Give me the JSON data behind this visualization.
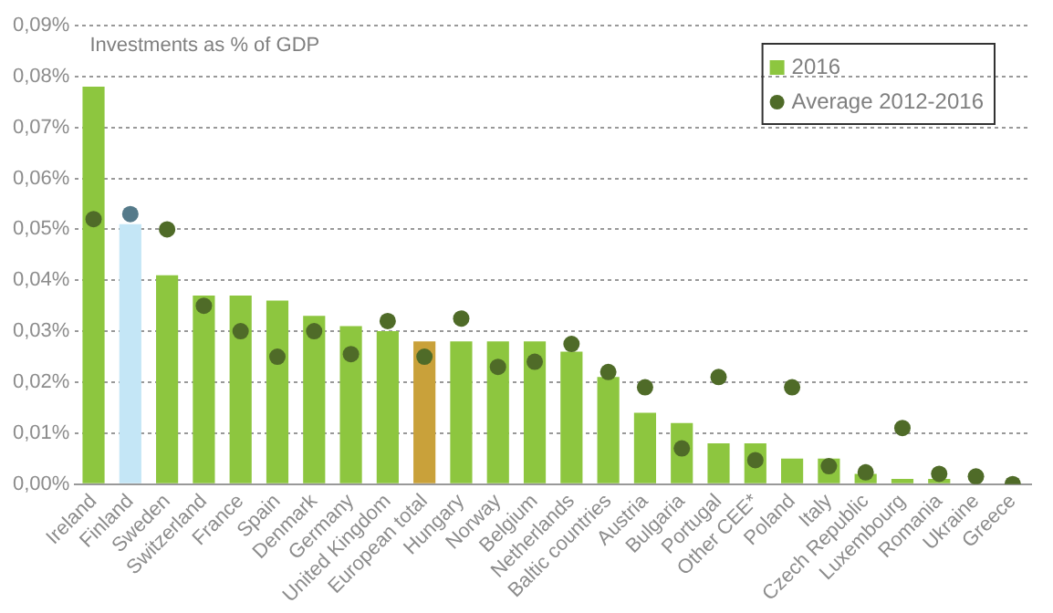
{
  "chart_data": {
    "type": "bar",
    "title": "Investments as % of GDP",
    "categories": [
      "Ireland",
      "Finland",
      "Sweden",
      "Switzerland",
      "France",
      "Spain",
      "Denmark",
      "Germany",
      "United Kingdom",
      "European total",
      "Hungary",
      "Norway",
      "Belgium",
      "Netherlands",
      "Baltic countries",
      "Austria",
      "Bulgaria",
      "Portugal",
      "Other CEE*",
      "Poland",
      "Italy",
      "Czech Republic",
      "Luxembourg",
      "Romania",
      "Ukraine",
      "Greece"
    ],
    "series": [
      {
        "name": "2016",
        "color": "#8dc63f",
        "colors": [
          "#8dc63f",
          "#c4e6f6",
          "#8dc63f",
          "#8dc63f",
          "#8dc63f",
          "#8dc63f",
          "#8dc63f",
          "#8dc63f",
          "#8dc63f",
          "#c9a13a",
          "#8dc63f",
          "#8dc63f",
          "#8dc63f",
          "#8dc63f",
          "#8dc63f",
          "#8dc63f",
          "#8dc63f",
          "#8dc63f",
          "#8dc63f",
          "#8dc63f",
          "#8dc63f",
          "#8dc63f",
          "#8dc63f",
          "#8dc63f",
          "#8dc63f",
          "#8dc63f"
        ],
        "values": [
          0.078,
          0.051,
          0.041,
          0.037,
          0.037,
          0.036,
          0.033,
          0.031,
          0.03,
          0.028,
          0.028,
          0.028,
          0.028,
          0.026,
          0.021,
          0.014,
          0.012,
          0.008,
          0.008,
          0.005,
          0.005,
          0.002,
          0.001,
          0.001,
          0,
          0
        ]
      },
      {
        "name": "Average 2012-2016",
        "type": "scatter",
        "color": "#4f6b28",
        "colors": [
          "#4f6b28",
          "#557a8a",
          "#4f6b28",
          "#4f6b28",
          "#4f6b28",
          "#4f6b28",
          "#4f6b28",
          "#4f6b28",
          "#4f6b28",
          "#4f6b28",
          "#4f6b28",
          "#4f6b28",
          "#4f6b28",
          "#4f6b28",
          "#4f6b28",
          "#4f6b28",
          "#4f6b28",
          "#4f6b28",
          "#4f6b28",
          "#4f6b28",
          "#4f6b28",
          "#4f6b28",
          "#4f6b28",
          "#4f6b28",
          "#4f6b28",
          "#4f6b28"
        ],
        "x": [
          "Ireland",
          "Finland",
          "Sweden",
          "Switzerland",
          "France",
          "Spain",
          "Denmark",
          "Germany",
          "United Kingdom",
          "European total",
          "Hungary",
          "Norway",
          "Belgium",
          "Netherlands",
          "Baltic countries",
          "Austria",
          "Bulgaria",
          "Portugal",
          "Other CEE*",
          "Poland",
          "Italy",
          "Czech Republic",
          "Luxembourg",
          "Romania",
          "Ukraine",
          "Greece"
        ],
        "values": [
          0.052,
          0.053,
          0.05,
          0.035,
          0.03,
          0.025,
          0.03,
          0.0255,
          0.032,
          0.025,
          0.0325,
          0.023,
          0.024,
          0.0275,
          0.022,
          0.019,
          0.007,
          0.021,
          0.0047,
          0.019,
          0.0035,
          0.0023,
          0.011,
          0.002,
          0.0015,
          0
        ]
      }
    ],
    "ylim": [
      0,
      0.09
    ],
    "yticks": [
      {
        "value": 0,
        "label": "0,00%"
      },
      {
        "value": 0.01,
        "label": "0,01%"
      },
      {
        "value": 0.02,
        "label": "0,02%"
      },
      {
        "value": 0.03,
        "label": "0,03%"
      },
      {
        "value": 0.04,
        "label": "0,04%"
      },
      {
        "value": 0.05,
        "label": "0,05%"
      },
      {
        "value": 0.06,
        "label": "0,06%"
      },
      {
        "value": 0.07,
        "label": "0,07%"
      },
      {
        "value": 0.08,
        "label": "0,08%"
      },
      {
        "value": 0.09,
        "label": "0,09%"
      }
    ],
    "grid": "y",
    "legend": "top right",
    "marker": "circle"
  }
}
